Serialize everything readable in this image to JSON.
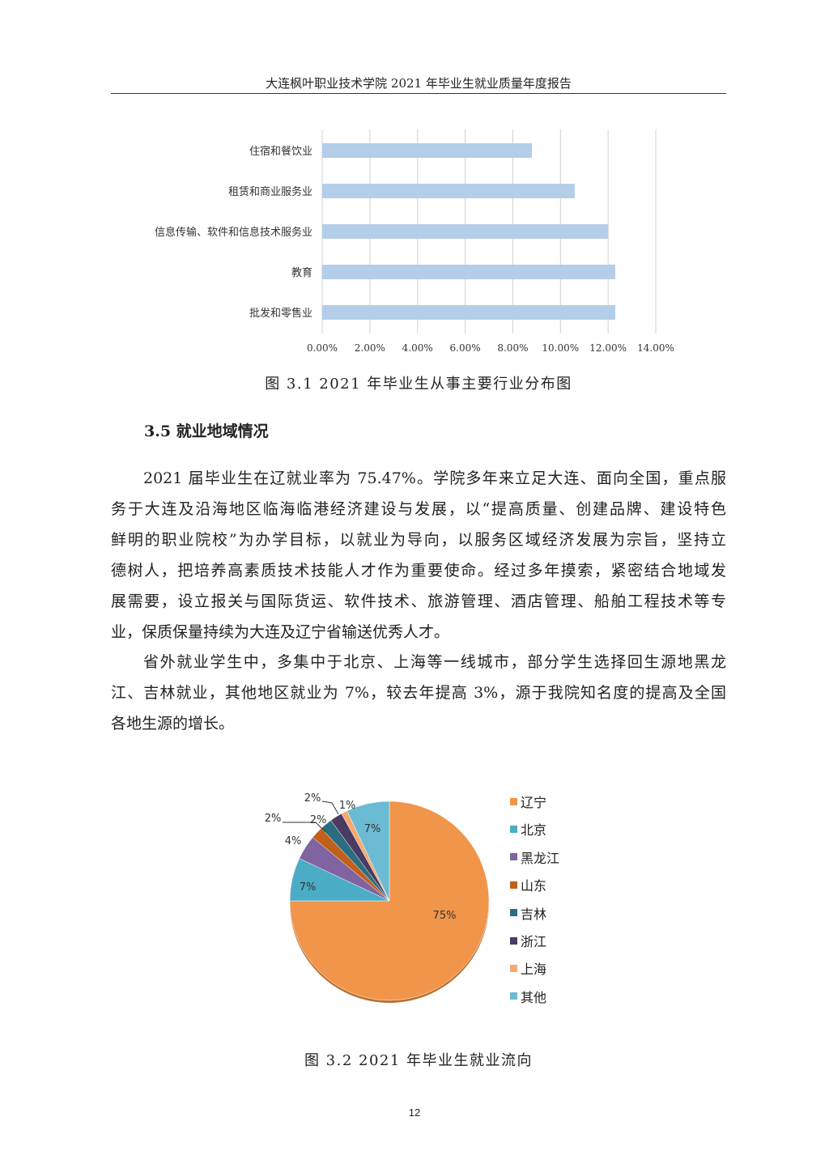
{
  "header": {
    "title": "大连枫叶职业技术学院 2021 年毕业生就业质量年度报告"
  },
  "figure1": {
    "caption": "图 3.1  2021 年毕业生从事主要行业分布图",
    "chart_data": {
      "type": "bar",
      "orientation": "horizontal",
      "categories": [
        "住宿和餐饮业",
        "租赁和商业服务业",
        "信息传输、软件和信息技术服务业",
        "教育",
        "批发和零售业"
      ],
      "values": [
        8.8,
        10.6,
        12.0,
        12.3,
        12.3
      ],
      "unit": "%",
      "xlim": [
        0,
        14
      ],
      "xticks": [
        "0.00%",
        "2.00%",
        "4.00%",
        "6.00%",
        "8.00%",
        "10.00%",
        "12.00%",
        "14.00%"
      ],
      "grid": true,
      "bar_color": "#B4CDE8"
    }
  },
  "section": {
    "heading": "3.5 就业地域情况",
    "paragraphs": [
      [
        "2021 届毕业生在辽就业率为 75.47%。学院多年来立足大连、面向全国，重点服",
        "务于大连及沿海地区临海临港经济建设与发展，以“提高质量、创建品牌、建设特色",
        "鲜明的职业院校”为办学目标，以就业为导向，以服务区域经济发展为宗旨，坚持立",
        "德树人，把培养高素质技术技能人才作为重要使命。经过多年摸索，紧密结合地域发",
        "展需要，设立报关与国际货运、软件技术、旅游管理、酒店管理、船舶工程技术等专",
        "业，保质保量持续为大连及辽宁省输送优秀人才。"
      ],
      [
        "省外就业学生中，多集中于北京、上海等一线城市，部分学生选择回生源地黑龙",
        "江、吉林就业，其他地区就业为 7%，较去年提高 3%，源于我院知名度的提高及全国",
        "各地生源的增长。"
      ]
    ]
  },
  "figure2": {
    "caption": "图 3.2   2021 年毕业生就业流向",
    "chart_data": {
      "type": "pie",
      "categories": [
        "辽宁",
        "北京",
        "黑龙江",
        "山东",
        "吉林",
        "浙江",
        "上海",
        "其他"
      ],
      "values": [
        75,
        7,
        4,
        2,
        2,
        2,
        1,
        7
      ],
      "labels": [
        "75%",
        "7%",
        "4%",
        "2%",
        "2%",
        "2%",
        "1%",
        "7%"
      ],
      "colors": [
        "#F0954A",
        "#4BACC6",
        "#8064A2",
        "#C0601A",
        "#2C6E7F",
        "#4A3B63",
        "#F6A96E",
        "#6BBBD3"
      ],
      "legend": "right"
    }
  },
  "page_number": "12"
}
